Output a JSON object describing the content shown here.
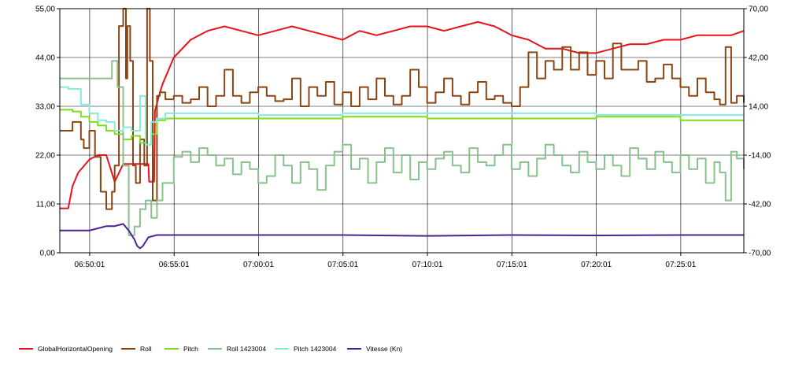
{
  "chart_data": {
    "type": "line",
    "grid": true,
    "legend_position": "bottom",
    "x_ticks": [
      "06:50:01",
      "06:55:01",
      "07:00:01",
      "07:05:01",
      "07:10:01",
      "07:15:01",
      "07:20:01",
      "07:25:01"
    ],
    "xlim": [
      "06:48:15",
      "07:28:45"
    ],
    "left_axis": {
      "ylim": [
        0,
        55
      ],
      "ticks": [
        "0,00",
        "11,00",
        "22,00",
        "33,00",
        "44,00",
        "55,00"
      ]
    },
    "right_axis": {
      "ylim": [
        -70,
        70
      ],
      "ticks": [
        "-70,00",
        "-42,00",
        "-14,00",
        "14,00",
        "42,00",
        "70,00"
      ]
    },
    "series": [
      {
        "name": "GlobalHorizontalOpening",
        "color": "#e8121e",
        "axis": "left",
        "stepped": false,
        "x": [
          "06:48:15",
          "06:48:45",
          "06:49:00",
          "06:49:20",
          "06:50:00",
          "06:50:30",
          "06:51:00",
          "06:51:30",
          "06:52:00",
          "06:52:30",
          "06:53:00",
          "06:53:30",
          "06:53:32",
          "06:53:50",
          "06:53:53",
          "06:54:10",
          "06:54:20",
          "06:54:40",
          "06:55:00",
          "06:56:00",
          "06:57:00",
          "06:58:00",
          "06:59:00",
          "07:00:00",
          "07:01:00",
          "07:02:00",
          "07:03:00",
          "07:04:00",
          "07:05:00",
          "07:06:00",
          "07:07:00",
          "07:08:00",
          "07:09:00",
          "07:10:00",
          "07:11:00",
          "07:12:00",
          "07:13:00",
          "07:14:00",
          "07:15:00",
          "07:16:00",
          "07:17:00",
          "07:18:00",
          "07:19:00",
          "07:20:00",
          "07:21:00",
          "07:22:00",
          "07:23:00",
          "07:24:00",
          "07:25:00",
          "07:26:00",
          "07:27:00",
          "07:28:00",
          "07:28:45"
        ],
        "values": [
          10,
          10,
          15,
          18,
          21,
          22,
          22,
          16,
          20,
          20,
          20,
          20,
          16,
          16,
          32,
          36,
          38,
          41,
          44,
          48,
          50,
          51,
          50,
          49,
          50,
          51,
          50,
          49,
          48,
          50,
          49,
          50,
          51,
          51,
          50,
          51,
          52,
          51,
          49,
          48,
          46,
          46,
          45,
          45,
          46,
          47,
          47,
          48,
          48,
          49,
          49,
          49,
          50
        ]
      },
      {
        "name": "Roll",
        "color": "#8b4513",
        "axis": "right",
        "stepped": true,
        "x": [
          "06:48:15",
          "06:49:00",
          "06:49:30",
          "06:49:40",
          "06:50:00",
          "06:50:20",
          "06:50:40",
          "06:51:00",
          "06:51:10",
          "06:51:20",
          "06:51:30",
          "06:51:45",
          "06:52:00",
          "06:52:10",
          "06:52:15",
          "06:52:25",
          "06:52:35",
          "06:52:45",
          "06:53:00",
          "06:53:15",
          "06:53:25",
          "06:53:35",
          "06:53:45",
          "06:54:00",
          "06:54:10",
          "06:54:30",
          "06:55:00",
          "06:55:30",
          "06:56:00",
          "06:56:30",
          "06:57:00",
          "06:57:30",
          "06:58:00",
          "06:58:30",
          "06:59:00",
          "06:59:30",
          "07:00:00",
          "07:00:30",
          "07:01:00",
          "07:01:30",
          "07:02:00",
          "07:02:30",
          "07:03:00",
          "07:03:30",
          "07:04:00",
          "07:04:30",
          "07:05:00",
          "07:05:30",
          "07:06:00",
          "07:06:30",
          "07:07:00",
          "07:07:30",
          "07:08:00",
          "07:08:30",
          "07:09:00",
          "07:09:30",
          "07:10:00",
          "07:10:30",
          "07:11:00",
          "07:11:30",
          "07:12:00",
          "07:12:30",
          "07:13:00",
          "07:13:30",
          "07:14:00",
          "07:14:30",
          "07:15:00",
          "07:15:30",
          "07:16:00",
          "07:16:30",
          "07:17:00",
          "07:17:30",
          "07:18:00",
          "07:18:30",
          "07:19:00",
          "07:19:30",
          "07:20:00",
          "07:20:30",
          "07:21:00",
          "07:21:30",
          "07:22:00",
          "07:22:30",
          "07:23:00",
          "07:23:30",
          "07:24:00",
          "07:24:30",
          "07:25:00",
          "07:25:30",
          "07:26:00",
          "07:26:30",
          "07:27:00",
          "07:27:20",
          "07:27:40",
          "07:28:00",
          "07:28:20",
          "07:28:45"
        ],
        "values": [
          0,
          5,
          -5,
          -10,
          0,
          -15,
          -35,
          -45,
          -45,
          -35,
          -20,
          60,
          70,
          30,
          60,
          40,
          -20,
          -30,
          -5,
          -20,
          70,
          40,
          -40,
          20,
          22,
          18,
          20,
          16,
          18,
          25,
          14,
          20,
          35,
          20,
          16,
          22,
          25,
          20,
          17,
          18,
          30,
          14,
          25,
          20,
          28,
          15,
          22,
          14,
          25,
          18,
          30,
          20,
          15,
          20,
          35,
          25,
          16,
          22,
          30,
          20,
          15,
          22,
          28,
          18,
          20,
          16,
          14,
          25,
          45,
          30,
          40,
          35,
          48,
          35,
          45,
          32,
          40,
          30,
          50,
          35,
          35,
          40,
          28,
          30,
          38,
          30,
          25,
          20,
          30,
          22,
          18,
          15,
          48,
          16,
          20,
          16
        ]
      },
      {
        "name": "Pitch",
        "color": "#7ddf1a",
        "axis": "right",
        "stepped": true,
        "x": [
          "06:48:15",
          "06:49:00",
          "06:49:30",
          "06:50:00",
          "06:50:30",
          "06:51:00",
          "06:51:30",
          "06:52:00",
          "06:52:30",
          "06:53:00",
          "06:53:20",
          "06:53:40",
          "06:54:00",
          "06:54:30",
          "06:55:00",
          "07:00:00",
          "07:05:00",
          "07:10:00",
          "07:15:00",
          "07:20:00",
          "07:25:00",
          "07:28:45"
        ],
        "values": [
          12,
          11,
          8,
          5,
          3,
          0,
          -2,
          -5,
          -3,
          -7,
          -8,
          -2,
          6,
          7,
          7,
          7,
          8,
          7,
          7,
          8,
          6,
          6
        ]
      },
      {
        "name": "Roll 1423004",
        "color": "#88c18c",
        "axis": "right",
        "stepped": true,
        "x": [
          "06:48:15",
          "06:51:00",
          "06:51:20",
          "06:51:40",
          "06:52:00",
          "06:52:20",
          "06:52:40",
          "06:53:00",
          "06:53:20",
          "06:53:40",
          "06:54:00",
          "06:54:20",
          "06:55:00",
          "06:55:30",
          "06:56:00",
          "06:56:30",
          "06:57:00",
          "06:57:30",
          "06:58:00",
          "06:58:30",
          "06:59:00",
          "06:59:30",
          "07:00:00",
          "07:00:30",
          "07:01:00",
          "07:01:30",
          "07:02:00",
          "07:02:30",
          "07:03:00",
          "07:03:30",
          "07:04:00",
          "07:04:30",
          "07:05:00",
          "07:05:30",
          "07:06:00",
          "07:06:30",
          "07:07:00",
          "07:07:30",
          "07:08:00",
          "07:08:30",
          "07:09:00",
          "07:09:30",
          "07:10:00",
          "07:10:30",
          "07:11:00",
          "07:11:30",
          "07:12:00",
          "07:12:30",
          "07:13:00",
          "07:13:30",
          "07:14:00",
          "07:14:30",
          "07:15:00",
          "07:15:30",
          "07:16:00",
          "07:16:30",
          "07:17:00",
          "07:17:30",
          "07:18:00",
          "07:18:30",
          "07:19:00",
          "07:19:30",
          "07:20:00",
          "07:20:30",
          "07:21:00",
          "07:21:30",
          "07:22:00",
          "07:22:30",
          "07:23:00",
          "07:23:30",
          "07:24:00",
          "07:24:30",
          "07:25:00",
          "07:25:30",
          "07:26:00",
          "07:26:30",
          "07:27:00",
          "07:27:20",
          "07:27:40",
          "07:28:00",
          "07:28:20",
          "07:28:45"
        ],
        "values": [
          30,
          30,
          40,
          25,
          -20,
          -60,
          -55,
          -45,
          -40,
          -50,
          -40,
          -30,
          -15,
          -12,
          -18,
          -10,
          -14,
          -20,
          -16,
          -25,
          -18,
          -22,
          -30,
          -26,
          -14,
          -20,
          -30,
          -18,
          -22,
          -34,
          -20,
          -12,
          -8,
          -22,
          -16,
          -30,
          -18,
          -10,
          -24,
          -14,
          -28,
          -18,
          -22,
          -16,
          -12,
          -20,
          -24,
          -10,
          -18,
          -20,
          -14,
          -8,
          -22,
          -18,
          -26,
          -16,
          -8,
          -14,
          -20,
          -24,
          -12,
          -18,
          -22,
          -14,
          -20,
          -26,
          -10,
          -16,
          -22,
          -12,
          -18,
          -24,
          -14,
          -22,
          -16,
          -30,
          -18,
          -24,
          -40,
          -12,
          -16,
          -22
        ]
      },
      {
        "name": "Pitch 1423004",
        "color": "#86ead9",
        "axis": "right",
        "stepped": true,
        "x": [
          "06:48:15",
          "06:48:45",
          "06:49:30",
          "06:50:00",
          "06:50:30",
          "06:51:00",
          "06:51:30",
          "06:52:00",
          "06:52:30",
          "06:53:00",
          "06:53:20",
          "06:53:40",
          "06:54:00",
          "06:54:30",
          "06:55:00",
          "07:00:00",
          "07:05:00",
          "07:10:00",
          "07:15:00",
          "07:20:00",
          "07:25:00",
          "07:28:45"
        ],
        "values": [
          25,
          24,
          15,
          10,
          6,
          5,
          0,
          2,
          0,
          20,
          -8,
          5,
          7,
          10,
          10,
          9,
          10,
          10,
          10,
          9,
          9,
          9
        ]
      },
      {
        "name": "Vitesse (Kn)",
        "color": "#4b2393",
        "axis": "left",
        "stepped": false,
        "x": [
          "06:48:15",
          "06:49:00",
          "06:50:00",
          "06:50:30",
          "06:51:00",
          "06:51:30",
          "06:52:00",
          "06:52:20",
          "06:52:40",
          "06:52:50",
          "06:53:00",
          "06:53:10",
          "06:53:30",
          "06:54:00",
          "06:55:00",
          "07:00:00",
          "07:05:00",
          "07:10:00",
          "07:15:00",
          "07:20:00",
          "07:25:00",
          "07:28:45"
        ],
        "values": [
          5,
          5,
          5,
          5.5,
          6,
          6,
          6.5,
          5,
          3,
          1.5,
          1,
          1.5,
          3.5,
          4,
          4,
          4,
          4,
          3.8,
          4,
          3.9,
          4,
          4
        ]
      }
    ]
  }
}
